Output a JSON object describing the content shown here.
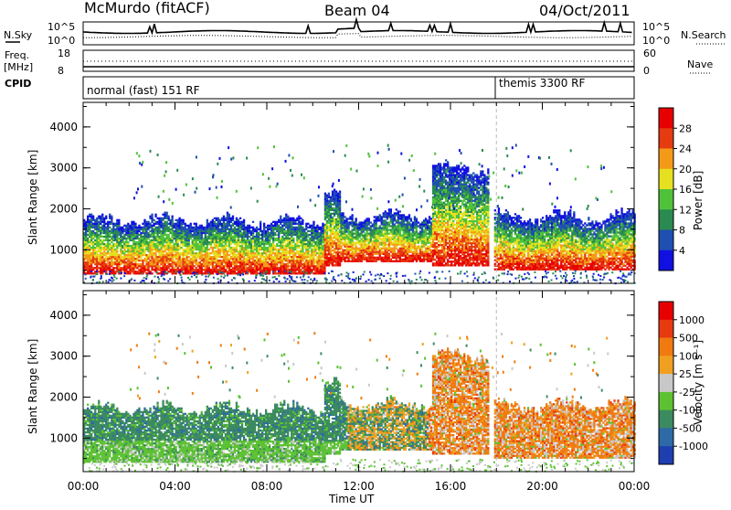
{
  "header": {
    "station": "McMurdo (fitACF)",
    "beam": "Beam 04",
    "date": "04/Oct/2011"
  },
  "summary_panels": {
    "nsky_label": "N.Sky",
    "nsky_ticks": [
      "10^5",
      "10^0"
    ],
    "nsearch_label": "N.Search",
    "nsearch_ticks": [
      "10^5",
      "10^0"
    ],
    "freq_label_top": "Freq.",
    "freq_label_unit": "[MHz]",
    "freq_ticks": [
      "18",
      "8"
    ],
    "nave_label": "Nave",
    "nave_ticks": [
      "60",
      "0"
    ],
    "cpid_label": "CPID",
    "cpid_segments": [
      {
        "label": "normal (fast) 151 RF",
        "start_hour": 0
      },
      {
        "label": "themis 3300 RF",
        "start_hour": 18
      }
    ]
  },
  "chart_data": [
    {
      "type": "heatmap",
      "name": "power",
      "ylabel": "Slant Range [km]",
      "x_ticks": [
        "00:00",
        "04:00",
        "08:00",
        "12:00",
        "16:00",
        "20:00",
        "00:00"
      ],
      "xlim_hours": [
        0,
        24
      ],
      "y_ticks": [
        "1000",
        "2000",
        "3000",
        "4000"
      ],
      "ylim_km": [
        180,
        4600
      ],
      "colorbar_label": "Power [dB]",
      "colorbar_ticks": [
        "4",
        "8",
        "12",
        "16",
        "20",
        "24",
        "28"
      ],
      "colorbar_colors": [
        "#1010e0",
        "#1f4fb0",
        "#2a8a50",
        "#50c23a",
        "#e6e020",
        "#f59a18",
        "#e63a10",
        "#e80000"
      ],
      "regions": [
        {
          "h0": 0.0,
          "h1": 10.5,
          "r0": 400,
          "r1": 1700
        },
        {
          "h0": 10.5,
          "h1": 11.2,
          "r0": 600,
          "r1": 2300
        },
        {
          "h0": 11.2,
          "h1": 15.2,
          "r0": 700,
          "r1": 1800
        },
        {
          "h0": 15.2,
          "h1": 17.6,
          "r0": 600,
          "r1": 3000
        },
        {
          "h0": 17.9,
          "h1": 24.0,
          "r0": 500,
          "r1": 1800
        }
      ]
    },
    {
      "type": "heatmap",
      "name": "velocity",
      "ylabel": "Slant Range [km]",
      "xlabel": "Time UT",
      "x_ticks": [
        "00:00",
        "04:00",
        "08:00",
        "12:00",
        "16:00",
        "20:00",
        "00:00"
      ],
      "xlim_hours": [
        0,
        24
      ],
      "y_ticks": [
        "1000",
        "2000",
        "3000",
        "4000"
      ],
      "ylim_km": [
        180,
        4600
      ],
      "colorbar_label": "Velocity [m s⁻¹]",
      "colorbar_ticks": [
        "1000",
        "500",
        "100",
        "25",
        "-25",
        "-100",
        "-500",
        "-1000"
      ],
      "colorbar_colors": [
        "#1f3fb0",
        "#2e6aa8",
        "#3c8a60",
        "#5cc232",
        "#c8c8c8",
        "#f0a020",
        "#f07a10",
        "#e83a10",
        "#e80000"
      ],
      "regions": [
        {
          "h0": 0.0,
          "h1": 10.5,
          "r0": 400,
          "r1": 1700
        },
        {
          "h0": 10.5,
          "h1": 11.2,
          "r0": 600,
          "r1": 2300
        },
        {
          "h0": 11.2,
          "h1": 15.2,
          "r0": 700,
          "r1": 1800
        },
        {
          "h0": 15.2,
          "h1": 17.6,
          "r0": 600,
          "r1": 3000
        },
        {
          "h0": 17.9,
          "h1": 24.0,
          "r0": 500,
          "r1": 1800
        }
      ]
    }
  ]
}
